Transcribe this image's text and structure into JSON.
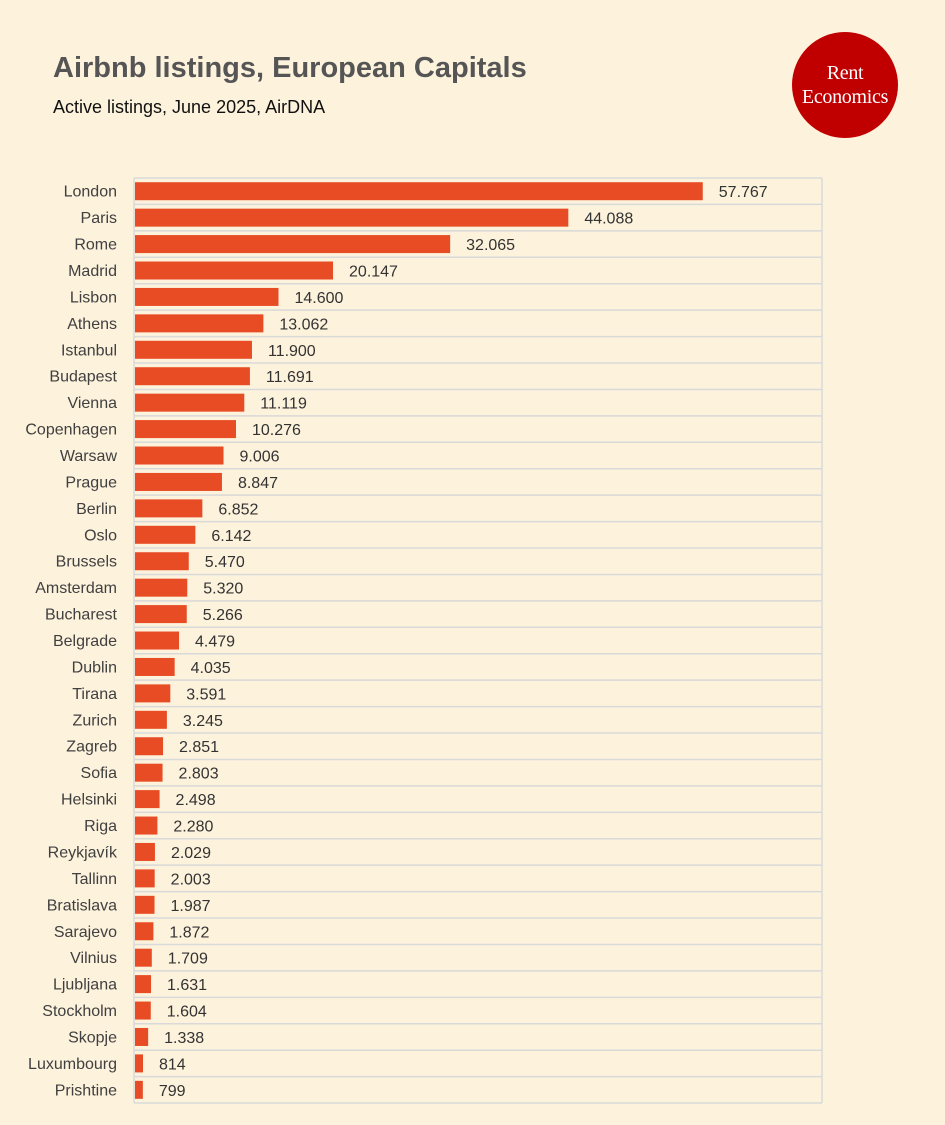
{
  "header": {
    "title": "Airbnb listings, European Capitals",
    "subtitle": "Active listings, June 2025, AirDNA"
  },
  "logo": {
    "line1": "Rent",
    "line2": "Economics",
    "color": "#c00000"
  },
  "colors": {
    "background": "#fdf2dc",
    "bar": "#e84c24"
  },
  "chart_data": {
    "type": "bar",
    "orientation": "horizontal",
    "title": "Airbnb listings, European Capitals",
    "subtitle": "Active listings, June 2025, AirDNA",
    "xlim": [
      0,
      70000
    ],
    "grid": true,
    "categories": [
      "London",
      "Paris",
      "Rome",
      "Madrid",
      "Lisbon",
      "Athens",
      "Istanbul",
      "Budapest",
      "Vienna",
      "Copenhagen",
      "Warsaw",
      "Prague",
      "Berlin",
      "Oslo",
      "Brussels",
      "Amsterdam",
      "Bucharest",
      "Belgrade",
      "Dublin",
      "Tirana",
      "Zurich",
      "Zagreb",
      "Sofia",
      "Helsinki",
      "Riga",
      "Reykjavík",
      "Tallinn",
      "Bratislava",
      "Sarajevo",
      "Vilnius",
      "Ljubljana",
      "Stockholm",
      "Skopje",
      "Luxumbourg",
      "Prishtine"
    ],
    "values": [
      57767,
      44088,
      32065,
      20147,
      14600,
      13062,
      11900,
      11691,
      11119,
      10276,
      9006,
      8847,
      6852,
      6142,
      5470,
      5320,
      5266,
      4479,
      4035,
      3591,
      3245,
      2851,
      2803,
      2498,
      2280,
      2029,
      2003,
      1987,
      1872,
      1709,
      1631,
      1604,
      1338,
      814,
      799
    ],
    "value_labels": [
      "57.767",
      "44.088",
      "32.065",
      "20.147",
      "14.600",
      "13.062",
      "11.900",
      "11.691",
      "11.119",
      "10.276",
      "9.006",
      "8.847",
      "6.852",
      "6.142",
      "5.470",
      "5.320",
      "5.266",
      "4.479",
      "4.035",
      "3.591",
      "3.245",
      "2.851",
      "2.803",
      "2.498",
      "2.280",
      "2.029",
      "2.003",
      "1.987",
      "1.872",
      "1.709",
      "1.631",
      "1.604",
      "1.338",
      "814",
      "799"
    ]
  }
}
